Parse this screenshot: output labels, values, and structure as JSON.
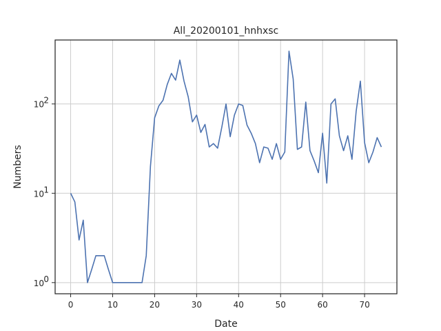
{
  "chart_data": {
    "type": "line",
    "title": "All_20200101_hnhxsc",
    "xlabel": "Date",
    "ylabel": "Numbers",
    "yscale": "log",
    "xlim": [
      -3.7,
      77.7
    ],
    "ylim": [
      0.75,
      520
    ],
    "grid": true,
    "x_ticks": [
      0,
      10,
      20,
      30,
      40,
      50,
      60,
      70
    ],
    "x_tick_labels": [
      "0",
      "10",
      "20",
      "30",
      "40",
      "50",
      "60",
      "70"
    ],
    "y_ticks": [
      1,
      10,
      100
    ],
    "y_tick_labels": [
      "10",
      "10",
      "10"
    ],
    "y_tick_exponents": [
      "0",
      "1",
      "2"
    ],
    "series": [
      {
        "color": "#4c72b0",
        "x": [
          0,
          1,
          2,
          3,
          4,
          5,
          6,
          7,
          8,
          9,
          10,
          11,
          12,
          13,
          14,
          15,
          16,
          17,
          18,
          19,
          20,
          21,
          22,
          23,
          24,
          25,
          26,
          27,
          28,
          29,
          30,
          31,
          32,
          33,
          34,
          35,
          36,
          37,
          38,
          39,
          40,
          41,
          42,
          43,
          44,
          45,
          46,
          47,
          48,
          49,
          50,
          51,
          52,
          53,
          54,
          55,
          56,
          57,
          58,
          59,
          60,
          61,
          62,
          63,
          64,
          65,
          66,
          67,
          68,
          69,
          70,
          71,
          72,
          73,
          74
        ],
        "values": [
          10,
          8,
          3,
          5,
          1,
          1.4,
          2,
          2,
          2,
          1.4,
          1,
          1,
          1,
          1,
          1,
          1,
          1,
          1,
          2,
          20,
          70,
          95,
          110,
          165,
          220,
          185,
          310,
          180,
          120,
          63,
          75,
          48,
          59,
          33,
          36,
          32,
          55,
          100,
          43,
          75,
          100,
          96,
          58,
          47,
          36,
          22,
          33,
          32,
          24,
          36,
          24,
          29,
          390,
          190,
          31,
          33,
          105,
          30,
          23,
          17,
          47,
          13,
          100,
          114,
          44,
          30,
          44,
          24,
          83,
          180,
          37,
          22,
          29,
          42,
          33
        ]
      }
    ]
  }
}
